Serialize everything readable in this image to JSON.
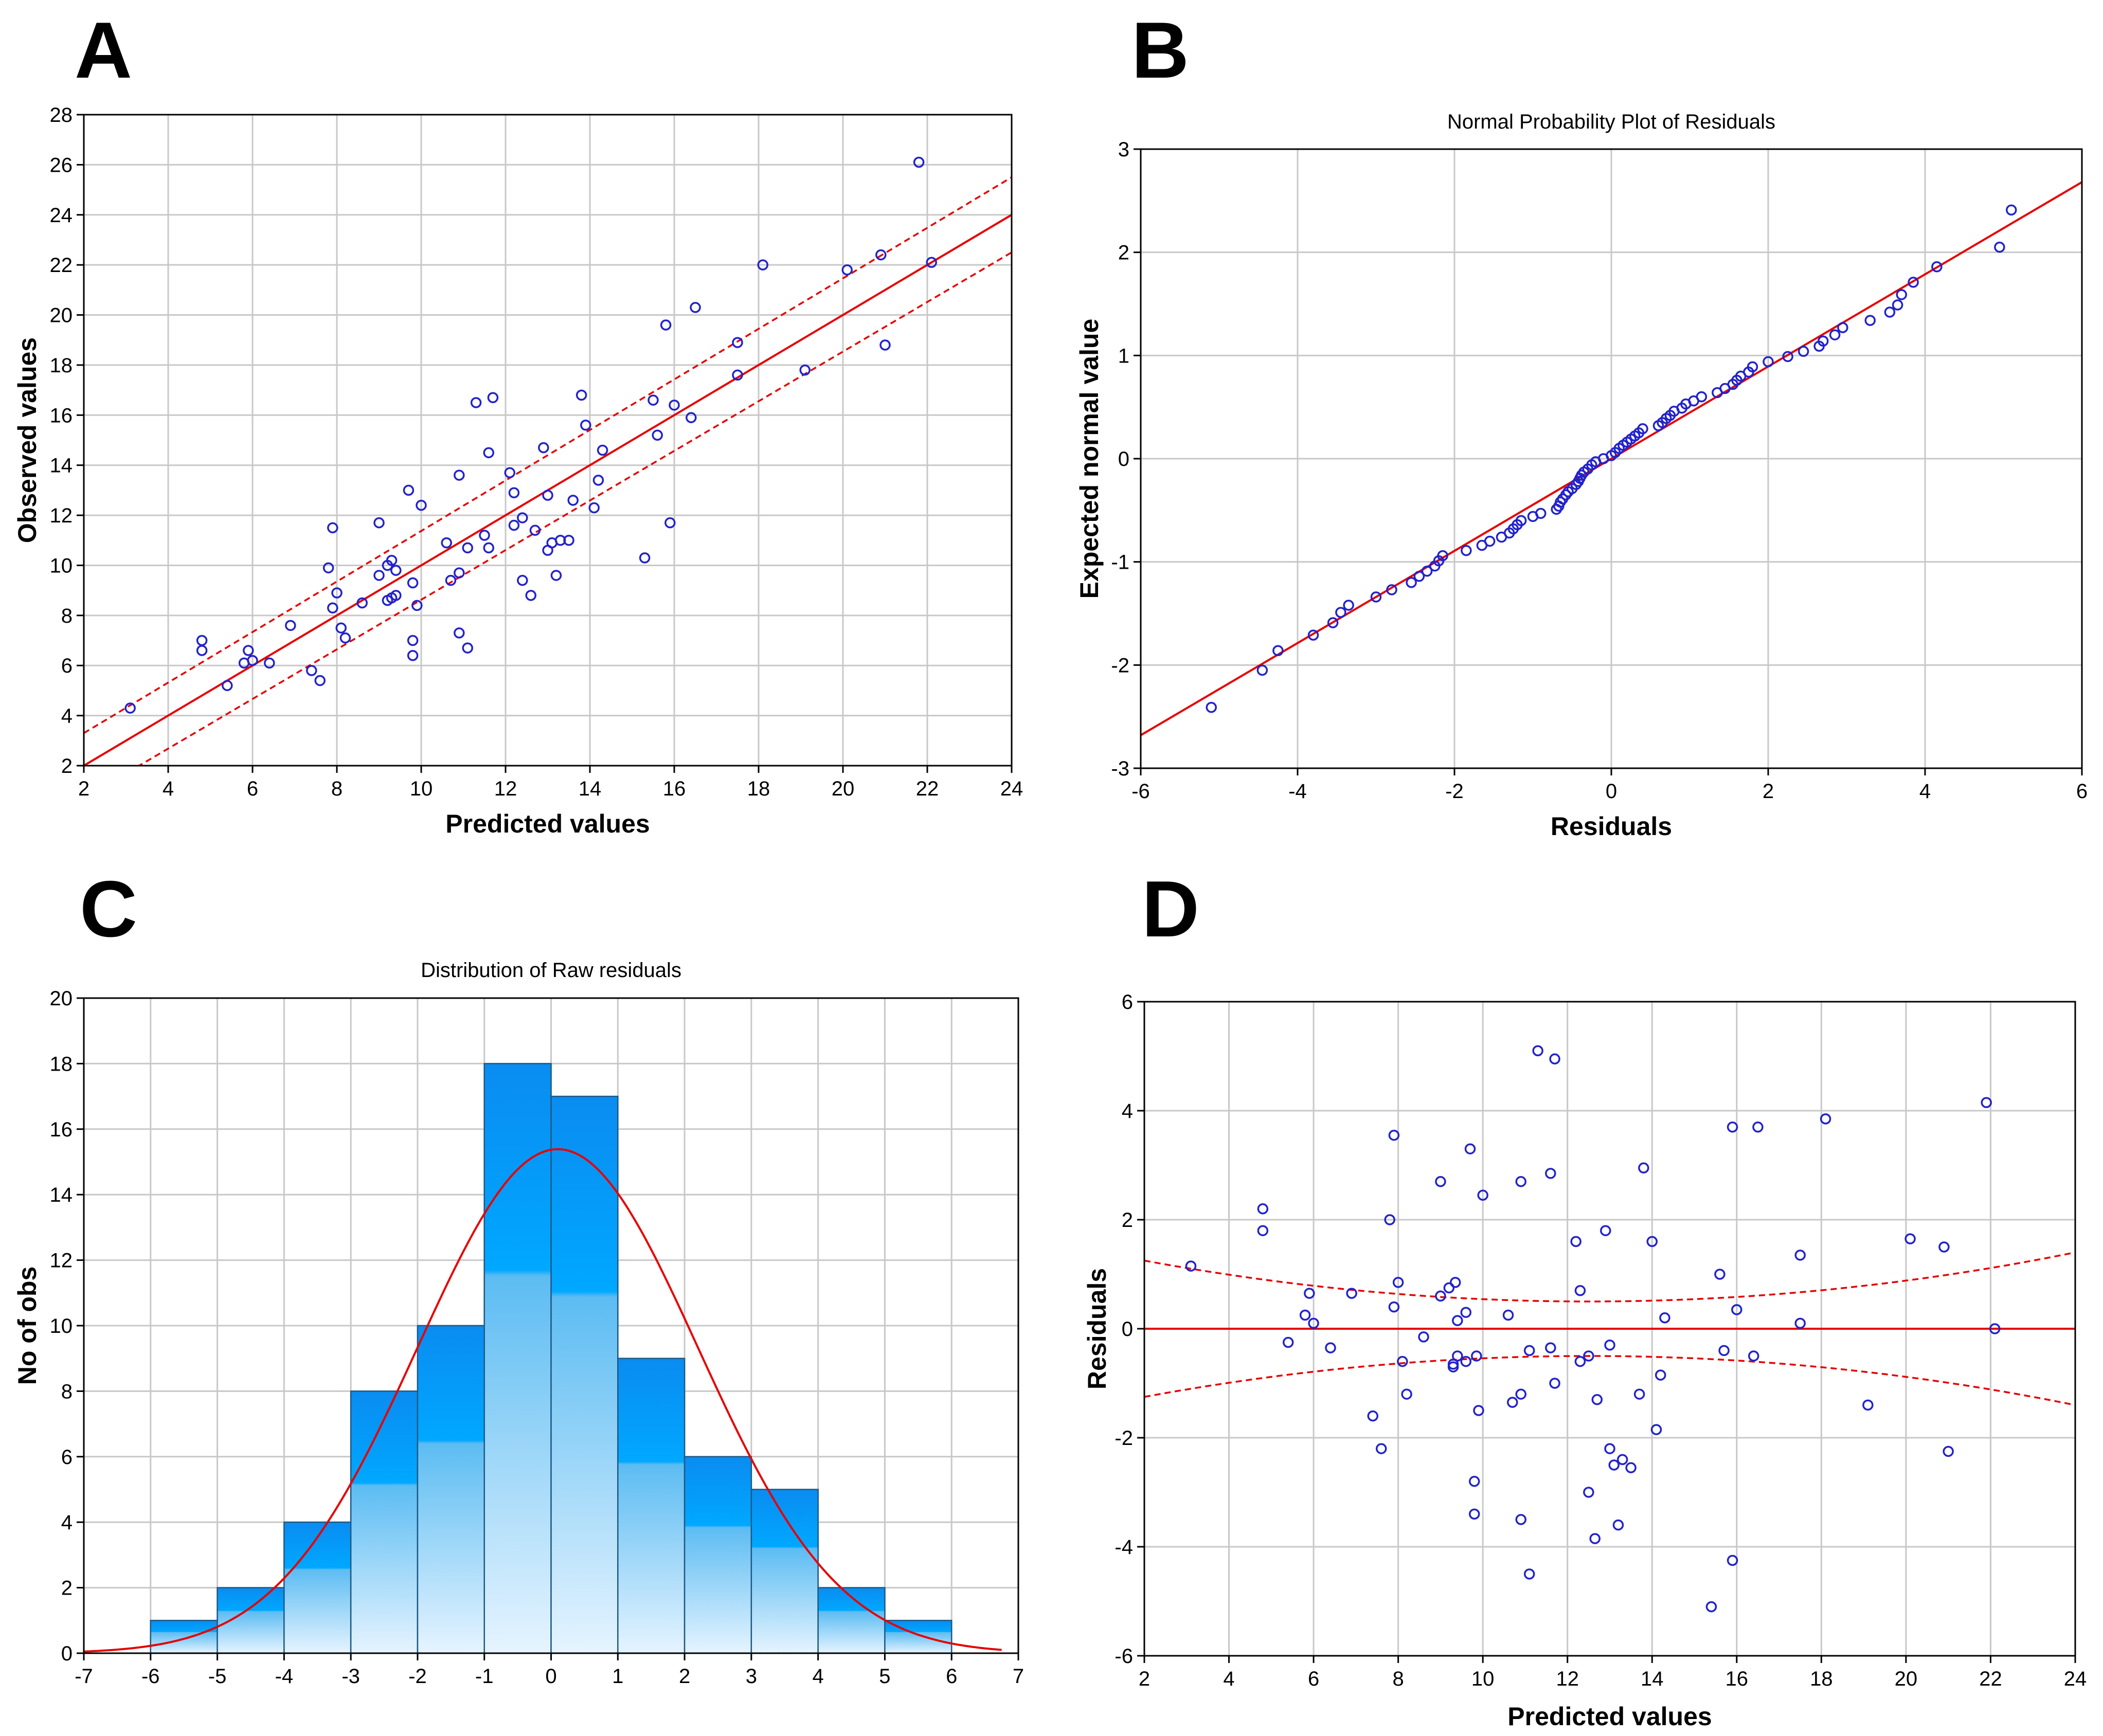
{
  "panels": [
    {
      "id": "A",
      "letter": "A"
    },
    {
      "id": "B",
      "letter": "B"
    },
    {
      "id": "C",
      "letter": "C"
    },
    {
      "id": "D",
      "letter": "D"
    }
  ],
  "colors": {
    "points": "#2222cc",
    "fit": "#e60000",
    "grid": "#c8c8c8",
    "bar_top": "#0a8cf0",
    "bar_bottom": "#dcefff",
    "bar_edge": "#1c5a88"
  },
  "chart_data": [
    {
      "id": "A",
      "type": "scatter",
      "title": "",
      "xlabel": "Predicted values",
      "ylabel": "Observed values",
      "xlim": [
        2,
        24
      ],
      "ylim": [
        2,
        28
      ],
      "xticks": [
        2,
        4,
        6,
        8,
        10,
        12,
        14,
        16,
        18,
        20,
        22,
        24
      ],
      "yticks": [
        2,
        4,
        6,
        8,
        10,
        12,
        14,
        16,
        18,
        20,
        22,
        24,
        26,
        28
      ],
      "fit_line": {
        "x": [
          2,
          24
        ],
        "y": [
          2,
          24
        ]
      },
      "confidence_band": {
        "upper": {
          "x": [
            2,
            24
          ],
          "y": [
            3.3,
            25.5
          ]
        },
        "lower": {
          "x": [
            2,
            24
          ],
          "y": [
            0.7,
            22.5
          ]
        }
      },
      "points": [
        [
          3.1,
          4.3
        ],
        [
          4.8,
          7.0
        ],
        [
          4.8,
          6.6
        ],
        [
          5.4,
          5.2
        ],
        [
          5.8,
          6.1
        ],
        [
          5.9,
          6.6
        ],
        [
          6.0,
          6.2
        ],
        [
          6.4,
          6.1
        ],
        [
          6.9,
          7.6
        ],
        [
          7.4,
          5.8
        ],
        [
          7.6,
          5.4
        ],
        [
          7.8,
          9.9
        ],
        [
          7.9,
          11.5
        ],
        [
          7.9,
          8.3
        ],
        [
          8.0,
          8.9
        ],
        [
          8.1,
          7.5
        ],
        [
          8.2,
          7.1
        ],
        [
          8.6,
          8.5
        ],
        [
          9.0,
          11.7
        ],
        [
          9.0,
          9.6
        ],
        [
          9.2,
          10.0
        ],
        [
          9.2,
          8.6
        ],
        [
          9.3,
          10.2
        ],
        [
          9.3,
          8.7
        ],
        [
          9.4,
          9.8
        ],
        [
          9.4,
          8.8
        ],
        [
          9.7,
          13.0
        ],
        [
          9.8,
          9.3
        ],
        [
          9.8,
          7.0
        ],
        [
          9.8,
          6.4
        ],
        [
          9.9,
          8.4
        ],
        [
          10.0,
          12.4
        ],
        [
          10.6,
          10.9
        ],
        [
          10.7,
          9.4
        ],
        [
          10.9,
          13.6
        ],
        [
          10.9,
          7.3
        ],
        [
          10.9,
          9.7
        ],
        [
          11.1,
          10.7
        ],
        [
          11.1,
          6.7
        ],
        [
          11.3,
          16.5
        ],
        [
          11.5,
          11.2
        ],
        [
          11.6,
          14.5
        ],
        [
          11.6,
          10.7
        ],
        [
          11.7,
          16.7
        ],
        [
          12.1,
          13.7
        ],
        [
          12.2,
          12.9
        ],
        [
          12.2,
          11.6
        ],
        [
          12.4,
          9.4
        ],
        [
          12.4,
          11.9
        ],
        [
          12.6,
          8.8
        ],
        [
          12.7,
          11.4
        ],
        [
          12.9,
          14.7
        ],
        [
          13.0,
          10.6
        ],
        [
          13.0,
          12.8
        ],
        [
          13.1,
          10.9
        ],
        [
          13.2,
          9.6
        ],
        [
          13.3,
          11.0
        ],
        [
          13.5,
          11.0
        ],
        [
          13.6,
          12.6
        ],
        [
          13.8,
          16.8
        ],
        [
          13.9,
          15.6
        ],
        [
          14.1,
          12.3
        ],
        [
          14.2,
          13.4
        ],
        [
          14.3,
          14.6
        ],
        [
          15.3,
          10.3
        ],
        [
          15.5,
          16.6
        ],
        [
          15.6,
          15.2
        ],
        [
          15.8,
          19.6
        ],
        [
          15.9,
          11.7
        ],
        [
          16.0,
          16.4
        ],
        [
          16.4,
          15.9
        ],
        [
          16.5,
          20.3
        ],
        [
          17.5,
          17.6
        ],
        [
          17.5,
          18.9
        ],
        [
          18.1,
          22.0
        ],
        [
          19.1,
          17.8
        ],
        [
          20.1,
          21.8
        ],
        [
          20.9,
          22.4
        ],
        [
          21.0,
          18.8
        ],
        [
          21.8,
          26.1
        ],
        [
          22.1,
          22.1
        ]
      ]
    },
    {
      "id": "B",
      "type": "scatter",
      "title": "Normal Probability Plot of Residuals",
      "xlabel": "Residuals",
      "ylabel": "Expected normal value",
      "xlim": [
        -6,
        6
      ],
      "ylim": [
        -3,
        3
      ],
      "xticks": [
        -6,
        -4,
        -2,
        0,
        2,
        4,
        6
      ],
      "yticks": [
        -3,
        -2,
        -1,
        0,
        1,
        2,
        3
      ],
      "fit_line": {
        "x": [
          -6,
          6
        ],
        "y": [
          -2.68,
          2.68
        ]
      },
      "points": [
        [
          -5.1,
          -2.41
        ],
        [
          -4.45,
          -2.05
        ],
        [
          -4.25,
          -1.86
        ],
        [
          -3.8,
          -1.71
        ],
        [
          -3.55,
          -1.59
        ],
        [
          -3.45,
          -1.49
        ],
        [
          -3.35,
          -1.42
        ],
        [
          -3.0,
          -1.34
        ],
        [
          -2.8,
          -1.27
        ],
        [
          -2.55,
          -1.2
        ],
        [
          -2.45,
          -1.14
        ],
        [
          -2.35,
          -1.09
        ],
        [
          -2.25,
          -1.04
        ],
        [
          -2.2,
          -0.99
        ],
        [
          -2.15,
          -0.94
        ],
        [
          -1.85,
          -0.89
        ],
        [
          -1.65,
          -0.84
        ],
        [
          -1.55,
          -0.8
        ],
        [
          -1.4,
          -0.76
        ],
        [
          -1.3,
          -0.72
        ],
        [
          -1.25,
          -0.68
        ],
        [
          -1.2,
          -0.64
        ],
        [
          -1.15,
          -0.6
        ],
        [
          -1.0,
          -0.56
        ],
        [
          -0.9,
          -0.53
        ],
        [
          -0.7,
          -0.49
        ],
        [
          -0.67,
          -0.46
        ],
        [
          -0.65,
          -0.42
        ],
        [
          -0.62,
          -0.39
        ],
        [
          -0.58,
          -0.35
        ],
        [
          -0.55,
          -0.32
        ],
        [
          -0.5,
          -0.29
        ],
        [
          -0.45,
          -0.25
        ],
        [
          -0.42,
          -0.22
        ],
        [
          -0.4,
          -0.19
        ],
        [
          -0.38,
          -0.16
        ],
        [
          -0.35,
          -0.13
        ],
        [
          -0.3,
          -0.1
        ],
        [
          -0.25,
          -0.06
        ],
        [
          -0.2,
          -0.03
        ],
        [
          -0.1,
          0.0
        ],
        [
          0.0,
          0.03
        ],
        [
          0.05,
          0.06
        ],
        [
          0.1,
          0.1
        ],
        [
          0.15,
          0.13
        ],
        [
          0.2,
          0.16
        ],
        [
          0.25,
          0.19
        ],
        [
          0.3,
          0.22
        ],
        [
          0.35,
          0.25
        ],
        [
          0.4,
          0.29
        ],
        [
          0.6,
          0.32
        ],
        [
          0.65,
          0.35
        ],
        [
          0.7,
          0.39
        ],
        [
          0.75,
          0.42
        ],
        [
          0.8,
          0.46
        ],
        [
          0.9,
          0.49
        ],
        [
          0.95,
          0.53
        ],
        [
          1.05,
          0.56
        ],
        [
          1.15,
          0.6
        ],
        [
          1.35,
          0.64
        ],
        [
          1.45,
          0.68
        ],
        [
          1.55,
          0.72
        ],
        [
          1.6,
          0.76
        ],
        [
          1.65,
          0.8
        ],
        [
          1.75,
          0.84
        ],
        [
          1.8,
          0.89
        ],
        [
          2.0,
          0.94
        ],
        [
          2.25,
          0.99
        ],
        [
          2.45,
          1.04
        ],
        [
          2.65,
          1.09
        ],
        [
          2.7,
          1.14
        ],
        [
          2.85,
          1.2
        ],
        [
          2.95,
          1.27
        ],
        [
          3.3,
          1.34
        ],
        [
          3.55,
          1.42
        ],
        [
          3.65,
          1.49
        ],
        [
          3.7,
          1.59
        ],
        [
          3.85,
          1.71
        ],
        [
          4.15,
          1.86
        ],
        [
          4.95,
          2.05
        ],
        [
          5.1,
          2.41
        ]
      ]
    },
    {
      "id": "C",
      "type": "bar",
      "title": "Distribution of Raw residuals",
      "xlabel": "",
      "ylabel": "No of obs",
      "xlim": [
        -7,
        7
      ],
      "ylim": [
        0,
        20
      ],
      "xticks": [
        -7,
        -6,
        -5,
        -4,
        -3,
        -2,
        -1,
        0,
        1,
        2,
        3,
        4,
        5,
        6,
        7
      ],
      "yticks": [
        0,
        2,
        4,
        6,
        8,
        10,
        12,
        14,
        16,
        18,
        20
      ],
      "bin_edges": [
        -6,
        -5,
        -4,
        -3,
        -2,
        -1,
        0,
        1,
        2,
        3,
        4,
        5,
        6
      ],
      "values": [
        1,
        2,
        4,
        8,
        10,
        18,
        17,
        9,
        6,
        5,
        2,
        1
      ],
      "normal_curve": {
        "mean": 0.1,
        "sd": 2.1,
        "scale": 81
      }
    },
    {
      "id": "D",
      "type": "scatter",
      "title": "",
      "xlabel": "Predicted values",
      "ylabel": "Residuals",
      "xlim": [
        2,
        24
      ],
      "ylim": [
        -6,
        6
      ],
      "xticks": [
        2,
        4,
        6,
        8,
        10,
        12,
        14,
        16,
        18,
        20,
        22,
        24
      ],
      "yticks": [
        -6,
        -4,
        -2,
        0,
        2,
        4,
        6
      ],
      "fit_line": {
        "x": [
          2,
          24
        ],
        "y": [
          0,
          0
        ]
      },
      "confidence_band": {
        "center_x": 12.5,
        "min_half_width": 0.5,
        "end_half_width": 1.25,
        "end_x": 2
      },
      "points": [
        [
          3.1,
          1.15
        ],
        [
          4.8,
          2.2
        ],
        [
          4.8,
          1.8
        ],
        [
          5.4,
          -0.25
        ],
        [
          5.8,
          0.25
        ],
        [
          5.9,
          0.65
        ],
        [
          6.0,
          0.1
        ],
        [
          6.4,
          -0.35
        ],
        [
          6.9,
          0.65
        ],
        [
          7.4,
          -1.6
        ],
        [
          7.6,
          -2.2
        ],
        [
          7.8,
          2.0
        ],
        [
          7.9,
          3.55
        ],
        [
          7.9,
          0.4
        ],
        [
          8.0,
          0.85
        ],
        [
          8.1,
          -0.6
        ],
        [
          8.2,
          -1.2
        ],
        [
          8.6,
          -0.15
        ],
        [
          9.0,
          2.7
        ],
        [
          9.0,
          0.6
        ],
        [
          9.2,
          0.75
        ],
        [
          9.3,
          -0.65
        ],
        [
          9.3,
          -0.7
        ],
        [
          9.35,
          0.85
        ],
        [
          9.4,
          -0.5
        ],
        [
          9.4,
          0.15
        ],
        [
          9.6,
          -0.6
        ],
        [
          9.6,
          0.3
        ],
        [
          9.7,
          3.3
        ],
        [
          9.8,
          -2.8
        ],
        [
          9.8,
          -3.4
        ],
        [
          9.85,
          -0.5
        ],
        [
          9.9,
          -1.5
        ],
        [
          10.0,
          2.45
        ],
        [
          10.6,
          0.25
        ],
        [
          10.7,
          -1.35
        ],
        [
          10.9,
          2.7
        ],
        [
          10.9,
          -3.5
        ],
        [
          10.9,
          -1.2
        ],
        [
          11.1,
          -0.4
        ],
        [
          11.1,
          -4.5
        ],
        [
          11.3,
          5.1
        ],
        [
          11.6,
          -0.35
        ],
        [
          11.6,
          2.85
        ],
        [
          11.7,
          4.95
        ],
        [
          11.7,
          -1.0
        ],
        [
          12.2,
          1.6
        ],
        [
          12.3,
          0.7
        ],
        [
          12.3,
          -0.6
        ],
        [
          12.5,
          -0.5
        ],
        [
          12.5,
          -3.0
        ],
        [
          12.65,
          -3.85
        ],
        [
          12.7,
          -1.3
        ],
        [
          12.9,
          1.8
        ],
        [
          13.0,
          -0.3
        ],
        [
          13.1,
          -2.5
        ],
        [
          13.0,
          -2.2
        ],
        [
          13.2,
          -3.6
        ],
        [
          13.3,
          -2.4
        ],
        [
          13.5,
          -2.55
        ],
        [
          13.7,
          -1.2
        ],
        [
          13.8,
          2.95
        ],
        [
          14.0,
          1.6
        ],
        [
          14.1,
          -1.85
        ],
        [
          14.2,
          -0.85
        ],
        [
          14.3,
          0.2
        ],
        [
          15.4,
          -5.1
        ],
        [
          15.6,
          1.0
        ],
        [
          15.7,
          -0.4
        ],
        [
          15.9,
          3.7
        ],
        [
          15.9,
          -4.25
        ],
        [
          16.0,
          0.35
        ],
        [
          16.4,
          -0.5
        ],
        [
          16.5,
          3.7
        ],
        [
          17.5,
          0.1
        ],
        [
          17.5,
          1.35
        ],
        [
          18.1,
          3.85
        ],
        [
          19.1,
          -1.4
        ],
        [
          20.1,
          1.65
        ],
        [
          20.9,
          1.5
        ],
        [
          21.0,
          -2.25
        ],
        [
          21.9,
          4.15
        ],
        [
          22.1,
          0.0
        ]
      ]
    }
  ]
}
